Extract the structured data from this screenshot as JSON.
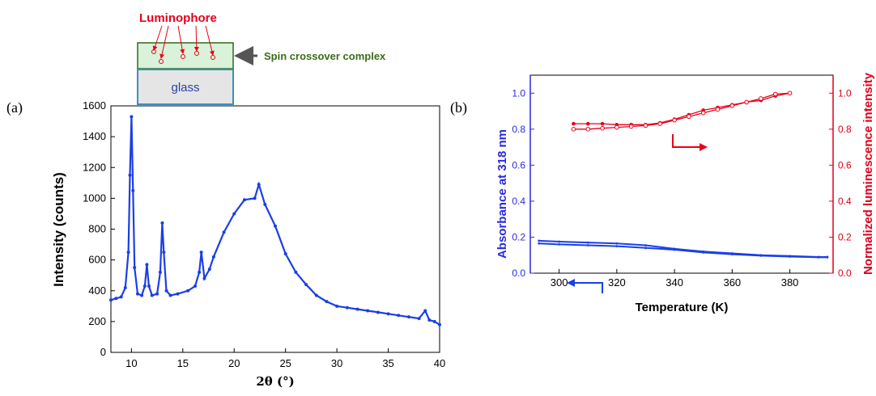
{
  "colors": {
    "series_blue": "#1a3fe6",
    "series_red": "#e8001a",
    "axis_blue": "#2a2ae0",
    "axis_red": "#e0001a",
    "film": "#d9f2d9",
    "film_border": "#2e6b1a",
    "glass": "#e5e5e5",
    "glass_border": "#3a8fc0",
    "label_green": "#3b6e1c"
  },
  "schematic": {
    "luminophore_label": "Luminophore",
    "film_label": "Spin crossover complex",
    "glass_label": "glass"
  },
  "chart_data": [
    {
      "panel_label": "(a)",
      "type": "line",
      "title": "",
      "xlabel": "2θ (°)",
      "ylabel": "Intensity (counts)",
      "xlim": [
        8,
        40
      ],
      "ylim": [
        0,
        1600
      ],
      "xticks": [
        10,
        15,
        20,
        25,
        30,
        35,
        40
      ],
      "yticks": [
        0,
        200,
        400,
        600,
        800,
        1000,
        1200,
        1400,
        1600
      ],
      "series": [
        {
          "color": "#1a3fe6",
          "x": [
            8.0,
            8.5,
            9.0,
            9.4,
            9.7,
            9.85,
            10.0,
            10.15,
            10.3,
            10.6,
            11.0,
            11.3,
            11.5,
            11.7,
            12.0,
            12.5,
            12.8,
            13.0,
            13.15,
            13.4,
            13.8,
            14.5,
            15.5,
            16.2,
            16.6,
            16.8,
            17.1,
            17.6,
            18.0,
            19.0,
            20.0,
            21.0,
            22.0,
            22.4,
            23.0,
            24.0,
            25.0,
            26.0,
            27.0,
            28.0,
            29.0,
            30.0,
            31.0,
            32.0,
            33.0,
            34.0,
            35.0,
            36.0,
            37.0,
            38.0,
            38.6,
            39.0,
            39.5,
            40.0
          ],
          "y": [
            340,
            350,
            360,
            420,
            650,
            1150,
            1530,
            1050,
            550,
            380,
            370,
            430,
            570,
            430,
            370,
            380,
            520,
            840,
            650,
            400,
            370,
            380,
            400,
            430,
            520,
            650,
            480,
            540,
            620,
            780,
            900,
            990,
            1000,
            1090,
            960,
            820,
            640,
            520,
            440,
            370,
            330,
            300,
            290,
            280,
            270,
            260,
            250,
            240,
            230,
            220,
            270,
            210,
            200,
            180
          ]
        }
      ]
    },
    {
      "panel_label": "(b)",
      "type": "line",
      "title": "",
      "xlabel": "Temperature (K)",
      "ylabel": "Absorbance at 318 nm",
      "y2label": "Normalized luminescence intensity",
      "xlim": [
        290,
        395
      ],
      "ylim": [
        0,
        1.1
      ],
      "y2lim": [
        0,
        1.1
      ],
      "xticks": [
        300,
        320,
        340,
        360,
        380
      ],
      "yticks": [
        0.0,
        0.2,
        0.4,
        0.6,
        0.8,
        1.0
      ],
      "y2ticks": [
        0.0,
        0.2,
        0.4,
        0.6,
        0.8,
        1.0
      ],
      "series": [
        {
          "axis": "left",
          "color": "#1a3fe6",
          "marker": "dot",
          "x": [
            293,
            300,
            310,
            320,
            330,
            340,
            350,
            360,
            370,
            380,
            390,
            393
          ],
          "y": [
            0.18,
            0.175,
            0.17,
            0.165,
            0.155,
            0.135,
            0.12,
            0.11,
            0.1,
            0.095,
            0.09,
            0.09
          ]
        },
        {
          "axis": "left",
          "color": "#1a3fe6",
          "marker": "dot",
          "x": [
            293,
            300,
            310,
            320,
            330,
            340,
            350,
            360,
            370,
            380,
            390,
            393
          ],
          "y": [
            0.165,
            0.16,
            0.155,
            0.15,
            0.14,
            0.13,
            0.115,
            0.105,
            0.097,
            0.092,
            0.088,
            0.088
          ]
        },
        {
          "axis": "right",
          "color": "#e8001a",
          "marker": "filled",
          "x": [
            305,
            310,
            315,
            320,
            325,
            330,
            335,
            340,
            345,
            350,
            355,
            360,
            365,
            370,
            375,
            380
          ],
          "y": [
            0.83,
            0.83,
            0.83,
            0.825,
            0.825,
            0.825,
            0.835,
            0.855,
            0.88,
            0.905,
            0.92,
            0.935,
            0.95,
            0.96,
            0.985,
            1.0
          ]
        },
        {
          "axis": "right",
          "color": "#e8001a",
          "marker": "open",
          "x": [
            305,
            310,
            315,
            320,
            325,
            330,
            335,
            340,
            345,
            350,
            355,
            360,
            365,
            370,
            375,
            380
          ],
          "y": [
            0.8,
            0.8,
            0.805,
            0.81,
            0.815,
            0.82,
            0.83,
            0.85,
            0.87,
            0.89,
            0.91,
            0.93,
            0.95,
            0.97,
            0.995,
            1.0
          ]
        }
      ]
    }
  ]
}
